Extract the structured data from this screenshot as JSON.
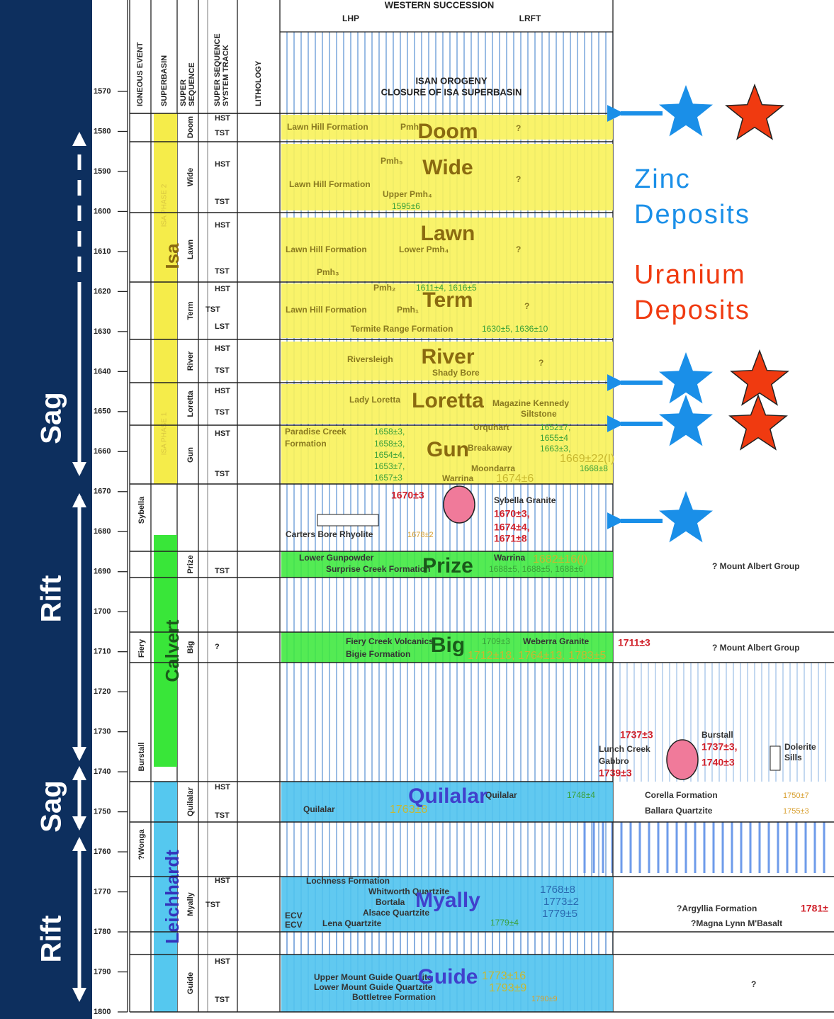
{
  "header": {
    "title": "WESTERN SUCCESSION",
    "left": "LHP",
    "right": "LRFT",
    "columns": [
      [
        "IGNEOUS EVENT"
      ],
      [
        "SUPERBASIN"
      ],
      [
        "SUPER",
        "SEQUENCE"
      ],
      [
        "SUPER SEQUENCE",
        "SYSTEM TRACK"
      ],
      [
        "LITHOLOGY"
      ]
    ]
  },
  "orogeny": [
    "ISAN OROGENY",
    "CLOSURE OF ISA SUPERBASIN"
  ],
  "age_axis": {
    "ticks": [
      1570,
      1580,
      1590,
      1600,
      1610,
      1620,
      1630,
      1640,
      1650,
      1660,
      1670,
      1680,
      1690,
      1700,
      1710,
      1720,
      1730,
      1740,
      1750,
      1760,
      1770,
      1780,
      1790,
      1800
    ]
  },
  "regimes": [
    "Sag",
    "Rift",
    "Sag",
    "Rift"
  ],
  "superbasins": [
    {
      "label": "Isa",
      "phases": [
        "ISA PHASE 2",
        "ISA PHASE 1"
      ]
    },
    {
      "label": "Calvert"
    },
    {
      "label": "Leichhardt"
    }
  ],
  "igneous_events": [
    "Sybella",
    "Fiery",
    "Burstall",
    "?Wonga"
  ],
  "supersequences": [
    "Doom",
    "Wide",
    "Lawn",
    "Term",
    "River",
    "Loretta",
    "Gun",
    "Prize",
    "Big",
    "Quilalar",
    "Myally",
    "Guide"
  ],
  "system_tracks": [
    "HST",
    "TST",
    "HST",
    "TST",
    "HST",
    "TST",
    "HST",
    "TST",
    "LST",
    "HST",
    "TST",
    "HST",
    "TST",
    "HST",
    "TST",
    "TST",
    "?",
    "HST",
    "TST",
    "HST",
    "TST",
    "HST",
    "TST"
  ],
  "formations": [
    "Lawn Hill Formation",
    "Pmh",
    "?",
    "Pmh₅",
    "Lawn Hill Formation",
    "Upper Pmh₄",
    "1595±6",
    "?",
    "Lawn Hill Formation",
    "Lower Pmh₄",
    "?",
    "Pmh₃",
    "Pmh₂",
    "1611±4, 1616±5",
    "Lawn Hill Formation",
    "Pmh₁",
    "?",
    "Termite Range Formation",
    "1630±5, 1636±10",
    "Riversleigh",
    "Shady Bore",
    "?",
    "Lady Loretta",
    "Magazine Kennedy",
    "Siltstone",
    "Paradise Creek",
    "Formation",
    "1658±3,",
    "1658±3,",
    "1654±4,",
    "1653±7,",
    "1657±3",
    "Urquhart",
    "1652±7,",
    "1655±4",
    "1663±3,",
    "Breakaway",
    "1669±22(I)",
    "Moondarra",
    "1668±8",
    "Warrina",
    "1674±6",
    "1670±3",
    "Sybella Granite",
    "1670±3,",
    "1674±4,",
    "1671±8",
    "Carters Bore Rhyolite",
    "1678±2",
    "Lower Gunpowder",
    "Warrina",
    "1682±16(I)",
    "Surprise Creek Formation",
    "1688±5, 1688±5, 1688±6",
    "? Mount Albert Group",
    "Fiery Creek Volcanics",
    "1709±3",
    "Weberra Granite",
    "Bigie Formation",
    "1712±18, 1764±13, 1783±5",
    "1711±3",
    "? Mount Albert Group",
    "1737±3",
    "Burstall",
    "1737±3,",
    "1740±3",
    "Lunch Creek",
    "Gabbro",
    "1739±3",
    "Dolerite",
    "Sills",
    "Quilalar",
    "1763±8",
    "Quilalar",
    "1748±4",
    "Corella Formation",
    "1750±7",
    "Ballara Quartzite",
    "1755±3",
    "Lochness Formation",
    "Whitworth Quartzite",
    "Bortala",
    "Alsace Quartzite",
    "ECV",
    "ECV",
    "Lena Quartzite",
    "1768±8",
    "1773±2",
    "1779±5",
    "1779±4",
    "?Argyllia Formation",
    "1781±",
    "?Magna Lynn M'Basalt",
    "Upper Mount Guide Quartzite",
    "Lower Mount Guide Quartzite",
    "Bottletree Formation",
    "1773±16",
    "1793±9",
    "1790±9",
    "?"
  ],
  "legend": {
    "zinc": [
      "Zinc",
      "Deposits"
    ],
    "uranium": [
      "Uranium",
      "Deposits"
    ]
  }
}
